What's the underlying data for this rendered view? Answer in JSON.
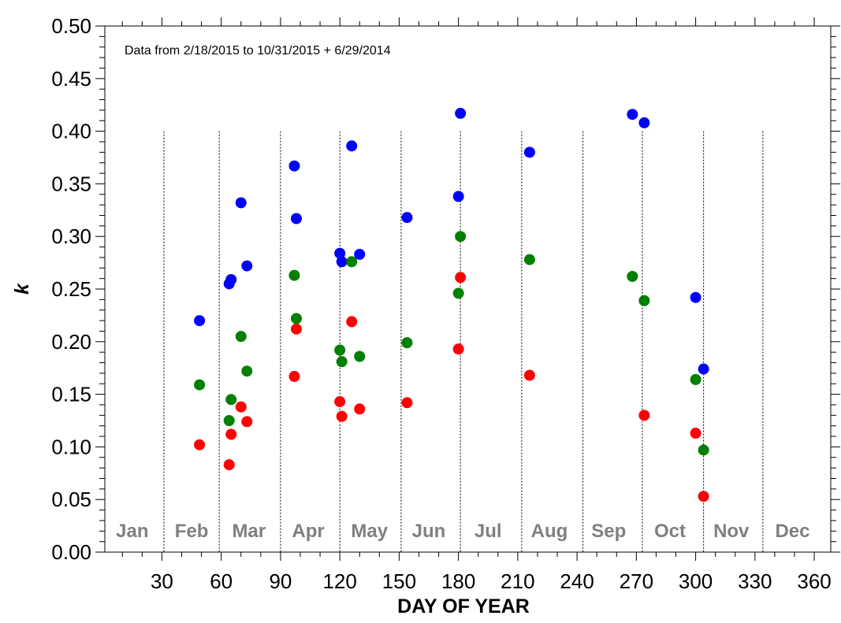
{
  "chart_data": {
    "type": "scatter",
    "title": "",
    "annotation": "Data from 2/18/2015 to 10/31/2015 + 6/29/2014",
    "xlabel": "DAY OF YEAR",
    "ylabel": "k",
    "xlim": [
      0,
      365
    ],
    "ylim": [
      0,
      0.5
    ],
    "xticks": [
      30,
      60,
      90,
      120,
      150,
      180,
      210,
      240,
      270,
      300,
      330,
      360
    ],
    "yticks": [
      "0.00",
      "0.05",
      "0.10",
      "0.15",
      "0.20",
      "0.25",
      "0.30",
      "0.35",
      "0.40",
      "0.45",
      "0.50"
    ],
    "grid": false,
    "month_boundaries": [
      31,
      59,
      90,
      120,
      151,
      181,
      212,
      243,
      273,
      304,
      334
    ],
    "months": [
      {
        "label": "Jan",
        "center": 15
      },
      {
        "label": "Feb",
        "center": 45
      },
      {
        "label": "Mar",
        "center": 74
      },
      {
        "label": "Apr",
        "center": 104
      },
      {
        "label": "May",
        "center": 135
      },
      {
        "label": "Jun",
        "center": 165
      },
      {
        "label": "Jul",
        "center": 195
      },
      {
        "label": "Aug",
        "center": 226
      },
      {
        "label": "Sep",
        "center": 256
      },
      {
        "label": "Oct",
        "center": 287
      },
      {
        "label": "Nov",
        "center": 318
      },
      {
        "label": "Dec",
        "center": 349
      }
    ],
    "series": [
      {
        "name": "blue",
        "color": "#0000ff",
        "points": [
          [
            49,
            0.22
          ],
          [
            64,
            0.255
          ],
          [
            65,
            0.259
          ],
          [
            70,
            0.332
          ],
          [
            73,
            0.272
          ],
          [
            97,
            0.367
          ],
          [
            98,
            0.317
          ],
          [
            120,
            0.284
          ],
          [
            121,
            0.276
          ],
          [
            126,
            0.386
          ],
          [
            130,
            0.283
          ],
          [
            154,
            0.318
          ],
          [
            180,
            0.338
          ],
          [
            181,
            0.417
          ],
          [
            216,
            0.38
          ],
          [
            268,
            0.416
          ],
          [
            274,
            0.408
          ],
          [
            300,
            0.242
          ],
          [
            304,
            0.174
          ]
        ]
      },
      {
        "name": "green",
        "color": "#008000",
        "points": [
          [
            49,
            0.159
          ],
          [
            64,
            0.125
          ],
          [
            65,
            0.145
          ],
          [
            70,
            0.205
          ],
          [
            73,
            0.172
          ],
          [
            97,
            0.263
          ],
          [
            98,
            0.222
          ],
          [
            120,
            0.192
          ],
          [
            121,
            0.181
          ],
          [
            126,
            0.276
          ],
          [
            130,
            0.186
          ],
          [
            154,
            0.199
          ],
          [
            180,
            0.246
          ],
          [
            181,
            0.3
          ],
          [
            216,
            0.278
          ],
          [
            268,
            0.262
          ],
          [
            274,
            0.239
          ],
          [
            300,
            0.164
          ],
          [
            304,
            0.097
          ]
        ]
      },
      {
        "name": "red",
        "color": "#ff0000",
        "points": [
          [
            49,
            0.102
          ],
          [
            64,
            0.083
          ],
          [
            65,
            0.112
          ],
          [
            70,
            0.138
          ],
          [
            73,
            0.124
          ],
          [
            97,
            0.167
          ],
          [
            98,
            0.212
          ],
          [
            120,
            0.143
          ],
          [
            121,
            0.129
          ],
          [
            126,
            0.219
          ],
          [
            130,
            0.136
          ],
          [
            154,
            0.142
          ],
          [
            180,
            0.193
          ],
          [
            181,
            0.261
          ],
          [
            216,
            0.168
          ],
          [
            274,
            0.13
          ],
          [
            300,
            0.113
          ],
          [
            304,
            0.053
          ]
        ]
      }
    ]
  }
}
